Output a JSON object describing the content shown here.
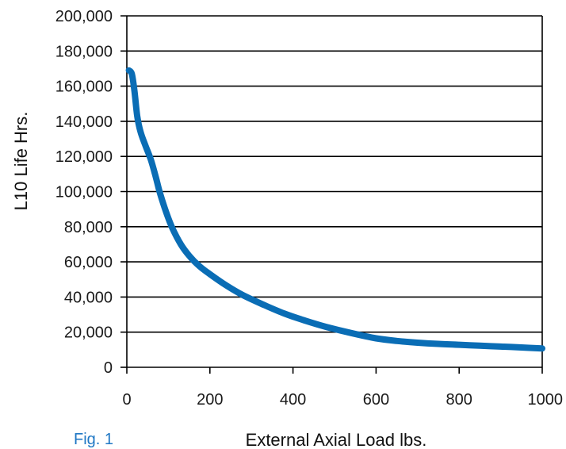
{
  "figure_label": "Fig. 1",
  "colors": {
    "series": "#0a6db5",
    "figure_label": "#1f77c4",
    "grid": "#000000"
  },
  "chart_data": {
    "type": "line",
    "title": "",
    "xlabel": "External Axial Load lbs.",
    "ylabel": "L10 Life Hrs.",
    "xlim": [
      0,
      1000
    ],
    "ylim": [
      0,
      200000
    ],
    "x_ticks": [
      0,
      200,
      400,
      600,
      800,
      1000
    ],
    "x_tick_labels": [
      "0",
      "200",
      "400",
      "600",
      "800",
      "1000"
    ],
    "y_ticks": [
      0,
      20000,
      40000,
      60000,
      80000,
      100000,
      120000,
      140000,
      160000,
      180000,
      200000
    ],
    "y_tick_labels": [
      "0",
      "20,000",
      "40,000",
      "60,000",
      "80,000",
      "100,000",
      "120,000",
      "140,000",
      "160,000",
      "180,000",
      "200,000"
    ],
    "grid": "horizontal",
    "legend": "none",
    "series": [
      {
        "x": [
          5,
          12,
          18,
          25,
          33,
          45,
          58,
          70,
          80,
          95,
          110,
          130,
          150,
          175,
          200,
          240,
          280,
          330,
          380,
          430,
          480,
          540,
          600,
          650,
          700,
          750,
          800,
          850,
          900,
          950,
          1000
        ],
        "y": [
          169000,
          167000,
          158000,
          143000,
          134000,
          126000,
          118000,
          108000,
          99000,
          88000,
          79000,
          70000,
          63500,
          57500,
          53000,
          46500,
          41000,
          35500,
          30500,
          26500,
          23000,
          19500,
          16500,
          15000,
          14000,
          13300,
          12800,
          12300,
          11800,
          11300,
          10700
        ]
      }
    ]
  }
}
